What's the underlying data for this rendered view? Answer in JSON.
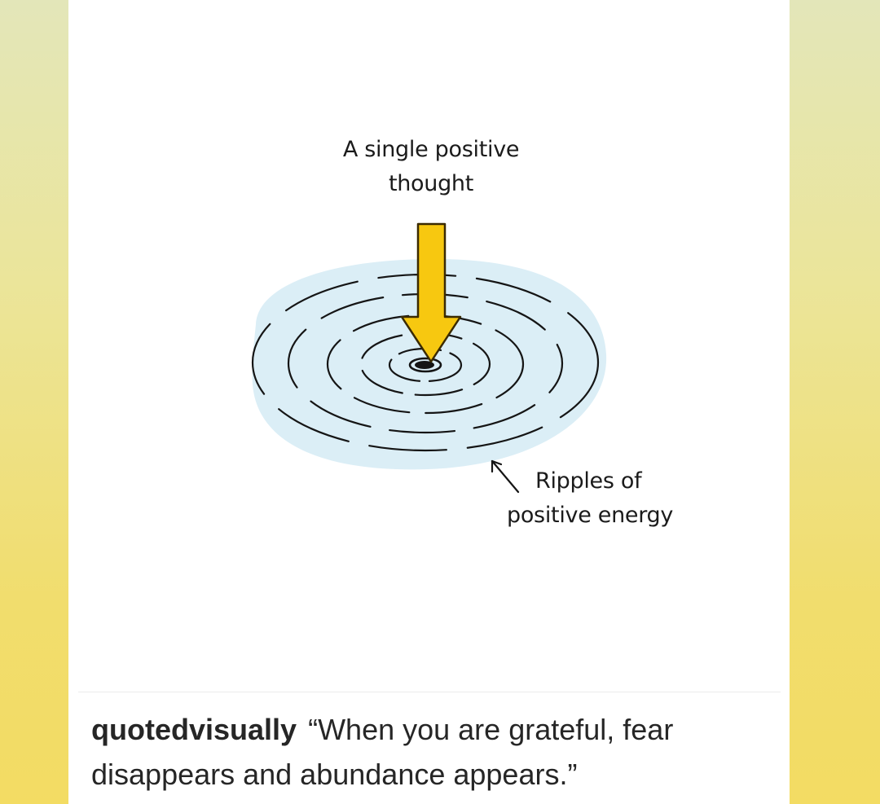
{
  "post": {
    "illustration": {
      "arrow_label": "A single positive thought",
      "arrow_label_lines": [
        "A single positive",
        "thought"
      ],
      "ripple_label_lines": [
        "Ripples of",
        "positive energy"
      ],
      "colors": {
        "arrow_fill": "#f7c810",
        "arrow_stroke": "#3a2a00",
        "water": "#dbeef6",
        "ink": "#151515"
      },
      "icons": [
        "down-arrow-icon",
        "ripple-rings-icon",
        "pointer-arrow-icon"
      ]
    },
    "caption": {
      "username": "quotedvisually",
      "text": "“When you are grateful, fear disappears and abundance appears.”"
    }
  },
  "colors": {
    "background_top": "#e3e6b9",
    "background_bottom": "#f3dc63",
    "card": "#ffffff"
  }
}
